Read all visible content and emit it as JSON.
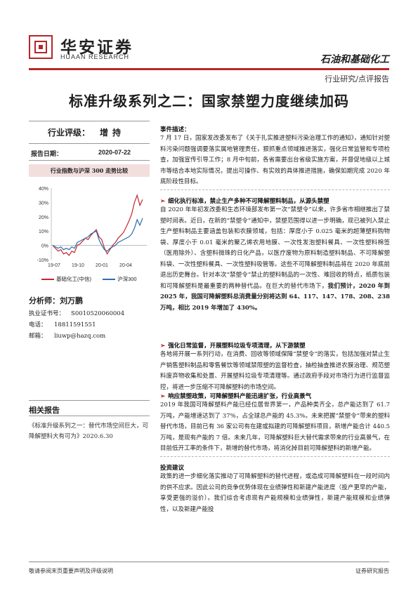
{
  "header": {
    "logo_cn": "华安证券",
    "logo_en": "HUAAN RESEARCH",
    "industry": "石油和基础化工",
    "report_type": "行业研究/点评报告"
  },
  "title": "标准升级系列之二：国家禁塑力度继续加码",
  "left": {
    "rating_label": "行业评级：",
    "rating_value": "增持",
    "date_label": "报告日期：",
    "date_value": "2020-07-22",
    "chart_caption": "行业指数与沪深 300 走势比较",
    "analyst_label": "分析师：",
    "analyst_name": "刘万鹏",
    "license_label": "执业证书号：",
    "license_value": "S0010520060004",
    "phone_label": "电话：",
    "phone_value": "18811591551",
    "email_label": "邮箱：",
    "email_value": "liuwp@hazq.com",
    "related_title": "相关报告",
    "related_item": "《标准升级系列之一：替代市场空间巨大，可降解塑料大有可为》2020.6.30"
  },
  "chart_data": {
    "type": "line",
    "x_ticks": [
      "19-07",
      "19-10",
      "20-01",
      "20-04"
    ],
    "y_ticks": [
      "40%",
      "30%",
      "20%",
      "10%",
      "0%",
      "-10%"
    ],
    "ylim": [
      -10,
      40
    ],
    "series": [
      {
        "name": "基础化工(中信)",
        "color": "#c0282d",
        "values": [
          0,
          -2,
          -4,
          -3,
          -6,
          -5,
          -7,
          -4,
          -5,
          0,
          1,
          3,
          5,
          4,
          7,
          9,
          11,
          6,
          4,
          -2,
          -6,
          -3,
          0,
          2,
          5,
          7,
          9,
          13,
          17,
          22,
          30,
          35,
          28,
          32
        ]
      },
      {
        "name": "沪深300",
        "color": "#2a6fb0",
        "values": [
          0,
          -1,
          -2,
          -1,
          -3,
          -2,
          -3,
          -1,
          -2,
          2,
          3,
          4,
          5,
          6,
          8,
          9,
          10,
          4,
          0,
          -3,
          -4,
          -2,
          -1,
          0,
          2,
          3,
          4,
          5,
          6,
          8,
          12,
          18,
          14,
          19
        ]
      }
    ]
  },
  "right": {
    "event_title": "事件描述：",
    "event_para": "7 月 17 日，国家发改委发布了《关于扎实推进塑料污染治理工作的通知》，通知针对塑料污染问题强调要落实属地管理责任，狠抓重点领域推进落实，强化日常监管和专项检查，加强宣传引导工作；8 月中旬前，各省需要出台省级实施方案，并督促地级以上城市等结合本地实际情况，提出可操作、有实效的具体推进措施，确保如期完成 2020 年底阶段性目标。",
    "s1_title": "细化执行标准，禁止生产多种不可降解塑料制品，从源头禁塑",
    "s1_para": "自 2020 年年初发改委和生态环境部发布第一次“禁塑令”以来，许多省市相继推出了禁塑时间表。近日，在新的“禁塑令”通知中，禁塑范围得以进一步明确，现已被列入禁止生产塑料制品主要涵盖包装和农膜领域，包括：厚度小于 0.025 毫米的超薄塑料购物袋、厚度小于 0.01 毫米的聚乙烯农用地膜、一次性发泡塑料餐具、一次性塑料棉签（医用除外）、含塑料微珠的日化产品，以医疗废物为原料制造塑料制品、不可降解塑料袋、一次性塑料餐具、一次性塑料吸管等。这些不可降解塑料制品将在 2020 年底前退出历史舞台。针对本次“禁塑令”禁止的塑料制品的一次性、难回收的特点，纸质包装和可降解塑料是最重要的两种替代品。在巨大的替代市场下，",
    "s1_bold": "我们预计，2020 年到 2025 年，我国可降解塑料总消费量分别将达到 64、117、147、178、208、238 万吨，相比 2019 年增加了 430%。",
    "s2_title": "强化日常监督，开展塑料垃圾专项清理，从下游禁塑",
    "s2_para": "各地将开展一系列行动，在消费、回收等领域保障“禁塑令”的落实，包括加强对禁止生产销售塑料制品和零售餐饮等领域禁限塑的监督检查，抽检抽查推进农膜治理、规范塑料废弃物收集和处置、开展塑料垃圾专项清理等。通过政府手段对市场行为进行监督监控，将进一步压缩不可降解塑料的市场空间。",
    "s3_title": "响应禁塑政策，可降解塑料产能迅速扩张，行业高景气",
    "s3_para": "2019 年我国可降解塑料产能已经位居世界第一，产品种类齐全，总产能达到了 61.7 万吨，产能增速达到了 37%，占全球总产能的 45.3%。未来把握“禁塑令”带来的塑料替代市场，目前已有 36 家公司有在建或拟建的可降解塑料项目，新增产能合计 440.5 万吨，是现有产能的 7 倍。未来几年，可降解塑料巨大替代需求带来的行业高景气，在目前低开工率的条件下，新增的替代市场，将消化掉目前可降解塑料的新增产能。",
    "invest_title": "投资建议",
    "invest_para": "政策的进一步细化落实推动了可降解塑料的替代进程，或造成可降解塑料在一段时间内的供不应求。因此公司的竞争优势体现在业绩弹性和新建产能进度（投产更早的产能，享受更强的溢价）。我们综合考虑现有产能规模和业绩弹性，新建产能规模和业绩弹性，以及新建产能投"
  },
  "footer": {
    "left": "敬请参阅末页重要声明及评级说明",
    "right": "证券研究报告"
  }
}
